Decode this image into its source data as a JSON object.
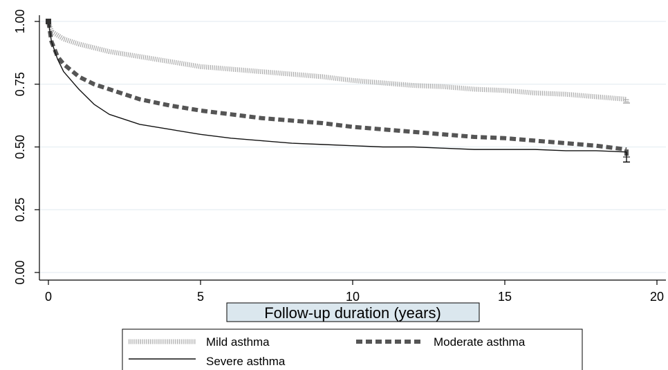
{
  "chart_data": {
    "type": "line",
    "title": "",
    "xlabel": "Follow-up duration (years)",
    "ylabel": "",
    "xlim": [
      0,
      20
    ],
    "ylim": [
      0,
      1
    ],
    "x_ticks": [
      "0",
      "5",
      "10",
      "15",
      "20"
    ],
    "y_ticks": [
      "0.00",
      "0.25",
      "0.50",
      "0.75",
      "1.00"
    ],
    "grid": "horizontal",
    "legend_position": "bottom",
    "series": [
      {
        "name": "Mild asthma",
        "style": "dotted-thick-light",
        "color": "#aaaaaa",
        "x": [
          0,
          0.1,
          0.3,
          0.5,
          1,
          1.5,
          2,
          3,
          4,
          5,
          6,
          7,
          8,
          9,
          10,
          11,
          12,
          13,
          14,
          15,
          16,
          17,
          18,
          19
        ],
        "y": [
          1.0,
          0.96,
          0.945,
          0.93,
          0.91,
          0.895,
          0.88,
          0.86,
          0.84,
          0.82,
          0.81,
          0.8,
          0.79,
          0.78,
          0.765,
          0.755,
          0.745,
          0.74,
          0.73,
          0.725,
          0.715,
          0.71,
          0.7,
          0.69
        ],
        "end": [
          19.0,
          0.675
        ]
      },
      {
        "name": "Moderate asthma",
        "style": "dashed-thick",
        "color": "#555555",
        "x": [
          0,
          0.1,
          0.3,
          0.5,
          1,
          1.5,
          2,
          2.5,
          3,
          4,
          5,
          6,
          7,
          8,
          9,
          10,
          11,
          12,
          13,
          14,
          15,
          16,
          17,
          18,
          19
        ],
        "y": [
          1.0,
          0.92,
          0.86,
          0.83,
          0.78,
          0.75,
          0.73,
          0.71,
          0.69,
          0.665,
          0.645,
          0.63,
          0.615,
          0.605,
          0.595,
          0.58,
          0.57,
          0.56,
          0.55,
          0.54,
          0.535,
          0.525,
          0.515,
          0.505,
          0.49
        ],
        "end": [
          19.0,
          0.46
        ]
      },
      {
        "name": "Severe asthma",
        "style": "solid-thin",
        "color": "#111111",
        "x": [
          0,
          0.1,
          0.3,
          0.5,
          1,
          1.5,
          2,
          2.5,
          3,
          4,
          5,
          6,
          7,
          8,
          9,
          10,
          11,
          12,
          13,
          14,
          15,
          16,
          17,
          18,
          19
        ],
        "y": [
          1.0,
          0.92,
          0.85,
          0.8,
          0.73,
          0.67,
          0.63,
          0.61,
          0.59,
          0.57,
          0.55,
          0.535,
          0.525,
          0.515,
          0.51,
          0.505,
          0.5,
          0.5,
          0.495,
          0.49,
          0.49,
          0.49,
          0.485,
          0.485,
          0.48
        ],
        "end": [
          19.0,
          0.44
        ]
      }
    ]
  }
}
